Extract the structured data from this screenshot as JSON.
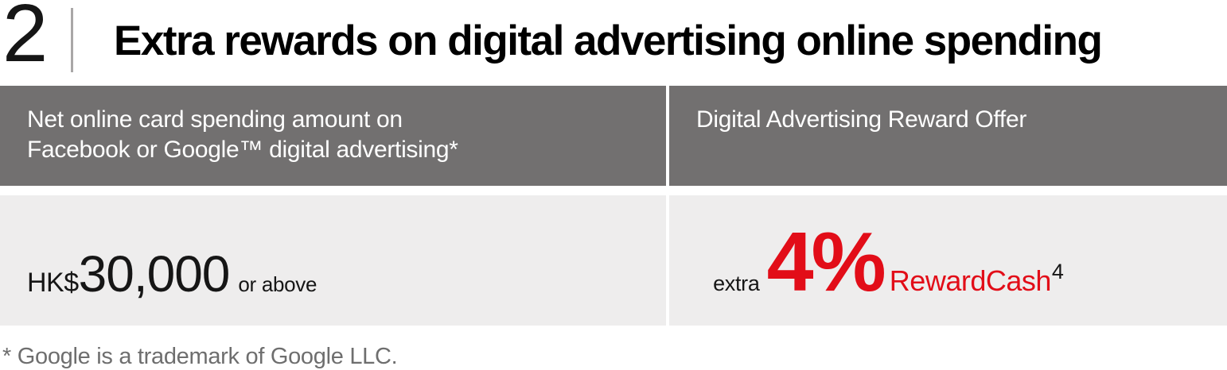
{
  "header": {
    "section_number": "2",
    "title": "Extra rewards on digital advertising online spending"
  },
  "table": {
    "header_spending": {
      "line1": "Net online card spending amount on",
      "line2": "Facebook or Google™ digital advertising*"
    },
    "header_offer": "Digital Advertising Reward Offer",
    "row": {
      "spend_currency": "HK$",
      "spend_amount": "30,000",
      "spend_qualifier": "or above",
      "offer_prefix": "extra",
      "offer_value": "4%",
      "offer_product": "RewardCash",
      "offer_footnote_ref": "4"
    }
  },
  "footnote": "* Google is a trademark of Google LLC.",
  "colors": {
    "accent_red": "#e20d18",
    "header_gray": "#727070",
    "row_gray": "#eeeded"
  }
}
